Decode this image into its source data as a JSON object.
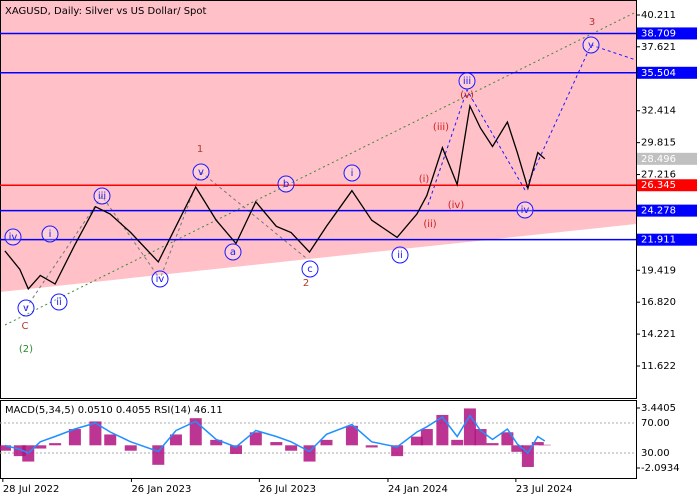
{
  "chart_data": [
    {
      "type": "line",
      "title": "XAGUSD, Daily:  Silver vs US Dollar/ Spot",
      "x": [
        "2022-07-31",
        "2022-08-21",
        "2022-09-02",
        "2022-09-19",
        "2022-10-10",
        "2022-11-07",
        "2022-12-06",
        "2022-12-27",
        "2023-01-25",
        "2023-03-05",
        "2023-03-30",
        "2023-04-27",
        "2023-05-26",
        "2023-06-23",
        "2023-07-21",
        "2023-08-19",
        "2023-09-09",
        "2023-10-05",
        "2023-10-29",
        "2023-12-04",
        "2024-01-01",
        "2024-02-06",
        "2024-03-05",
        "2024-03-19",
        "2024-04-10",
        "2024-05-01",
        "2024-05-19",
        "2024-06-03",
        "2024-06-20",
        "2024-07-11",
        "2024-07-25",
        "2024-08-09",
        "2024-08-23",
        "2024-09-02"
      ],
      "series": [
        {
          "name": "XAGUSD",
          "color": "#000000",
          "values": [
            21.0,
            19.5,
            17.9,
            19.0,
            18.3,
            21.5,
            24.6,
            24.0,
            22.5,
            20.1,
            23.0,
            26.2,
            23.5,
            21.6,
            25.0,
            23.0,
            22.5,
            20.9,
            23.0,
            25.9,
            23.5,
            22.1,
            24.0,
            25.5,
            29.4,
            26.4,
            32.8,
            31.0,
            29.5,
            31.5,
            29.0,
            26.1,
            29.0,
            28.5
          ]
        }
      ],
      "xlim": [
        "2022-07-24",
        "2025-01-09"
      ],
      "xticks": [
        {
          "value": "2022-07-28",
          "label": "28 Jul 2022"
        },
        {
          "value": "2023-01-26",
          "label": "26 Jan 2023"
        },
        {
          "value": "2023-07-26",
          "label": "26 Jul 2023"
        },
        {
          "value": "2024-01-24",
          "label": "24 Jan 2024"
        },
        {
          "value": "2024-07-23",
          "label": "23 Jul 2024"
        }
      ],
      "ylim": [
        9.016,
        41.433
      ],
      "yticks": [
        40.211,
        37.621,
        32.414,
        29.815,
        27.216,
        19.419,
        {
          "value": 16.82,
          "label": "16.820"
        },
        14.221,
        11.622
      ],
      "levels": [
        {
          "value": 38.709,
          "color": "#0000ff",
          "line": true
        },
        {
          "value": 35.504,
          "color": "#0000ff",
          "line": true
        },
        {
          "value": 28.496,
          "color": "#c0c0c0",
          "line": false
        },
        {
          "value": 26.345,
          "color": "#ff0000",
          "line": true
        },
        {
          "value": 24.278,
          "color": "#0000ff",
          "line": true
        },
        {
          "value": 21.911,
          "color": "#0000ff",
          "line": true
        }
      ],
      "annotations": [
        {
          "text": "iv",
          "color": "#1a1aff",
          "circled": true
        },
        {
          "text": "v",
          "color": "#1a1aff",
          "circled": true
        },
        {
          "text": "C",
          "color": "#b03a2e",
          "circled": false
        },
        {
          "text": "(2)",
          "color": "#2e8b2e",
          "circled": false
        },
        {
          "text": "i",
          "color": "#1a1aff",
          "circled": true
        },
        {
          "text": "ii",
          "color": "#1a1aff",
          "circled": true
        },
        {
          "text": "iii",
          "color": "#1a1aff",
          "circled": true
        },
        {
          "text": "iv",
          "color": "#1a1aff",
          "circled": true
        },
        {
          "text": "1",
          "color": "#b03a2e",
          "circled": false
        },
        {
          "text": "v",
          "color": "#1a1aff",
          "circled": true
        },
        {
          "text": "a",
          "color": "#1a1aff",
          "circled": true
        },
        {
          "text": "b",
          "color": "#1a1aff",
          "circled": true
        },
        {
          "text": "c",
          "color": "#1a1aff",
          "circled": true
        },
        {
          "text": "2",
          "color": "#b03a2e",
          "circled": false
        },
        {
          "text": "i",
          "color": "#1a1aff",
          "circled": true
        },
        {
          "text": "ii",
          "color": "#1a1aff",
          "circled": true
        },
        {
          "text": "(i)",
          "color": "#d02020",
          "circled": false
        },
        {
          "text": "(ii)",
          "color": "#d02020",
          "circled": false
        },
        {
          "text": "(iii)",
          "color": "#d02020",
          "circled": false
        },
        {
          "text": "(iv)",
          "color": "#d02020",
          "circled": false
        },
        {
          "text": "(v)",
          "color": "#d02020",
          "circled": false
        },
        {
          "text": "iii",
          "color": "#1a1aff",
          "circled": true
        },
        {
          "text": "iv",
          "color": "#1a1aff",
          "circled": true
        },
        {
          "text": "3",
          "color": "#b03a2e",
          "circled": false
        },
        {
          "text": "v",
          "color": "#1a1aff",
          "circled": true
        }
      ]
    },
    {
      "type": "indicator",
      "title": "MACD(5,34,5) 0.0510 0.4055 RSI(14) 46.11",
      "series": [
        {
          "name": "MACD",
          "color": "#b0127f",
          "values": [
            -0.5,
            -1.0,
            -1.5,
            -0.3,
            0.2,
            1.5,
            2.2,
            1.0,
            -0.5,
            -1.8,
            1.0,
            2.5,
            0.5,
            -0.8,
            1.2,
            0.3,
            -0.5,
            -1.5,
            0.5,
            1.8,
            -0.2,
            -1.0,
            0.8,
            1.5,
            2.8,
            0.5,
            3.4,
            1.5,
            0.2,
            1.2,
            -0.6,
            -2.0,
            0.3,
            0.05
          ]
        },
        {
          "name": "RSI",
          "color": "#1e90ff",
          "axis": "y2",
          "values": [
            40,
            35,
            30,
            45,
            52,
            62,
            70,
            58,
            45,
            32,
            60,
            72,
            48,
            38,
            60,
            52,
            45,
            32,
            55,
            68,
            45,
            38,
            58,
            65,
            78,
            52,
            80,
            60,
            48,
            62,
            42,
            30,
            52,
            46
          ]
        }
      ],
      "ylim": [
        -3.016,
        4.178
      ],
      "yticks": [
        3.4405,
        -2.0934
      ],
      "y2lim": [
        -3.3,
        100.7
      ],
      "y2ticks": [
        {
          "value": 70,
          "label": "70.00"
        },
        {
          "value": 30,
          "label": "30.00"
        }
      ]
    }
  ]
}
